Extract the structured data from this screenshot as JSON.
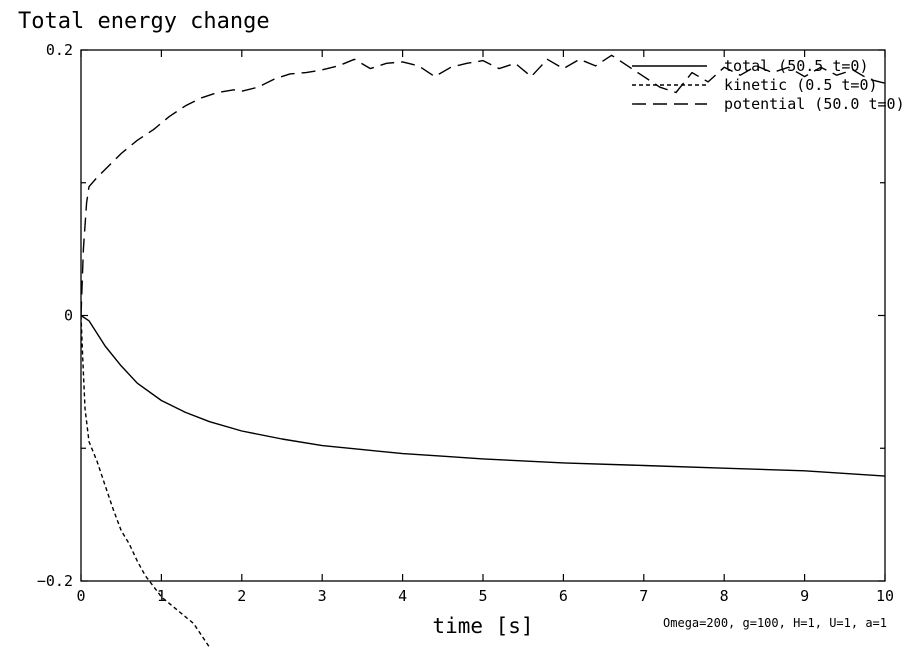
{
  "chart_data": {
    "type": "line",
    "title": "Total energy change",
    "xlabel": "time [s]",
    "ylabel": "",
    "xlim": [
      0,
      10
    ],
    "ylim": [
      -0.2,
      0.2
    ],
    "x_ticks": [
      0,
      1,
      2,
      3,
      4,
      5,
      6,
      7,
      8,
      9,
      10
    ],
    "x_tick_labels": [
      "0",
      "1",
      "2",
      "3",
      "4",
      "5",
      "6",
      "7",
      "8",
      "9",
      "10"
    ],
    "y_ticks": [
      -0.2,
      0,
      0.2
    ],
    "y_tick_labels": [
      "−0.2",
      "0",
      "0.2"
    ],
    "annotation": "Omega=200, g=100, H=1, U=1, a=1",
    "legend_position": "top-right",
    "series": [
      {
        "name": "total",
        "legend_label": "total (50.5 t=0)",
        "style": "solid",
        "x": [
          0,
          0.1,
          0.3,
          0.5,
          0.7,
          1.0,
          1.3,
          1.6,
          2.0,
          2.5,
          3.0,
          3.5,
          4.0,
          4.5,
          5.0,
          6.0,
          7.0,
          8.0,
          9.0,
          10.0
        ],
        "y": [
          0,
          -0.004,
          -0.023,
          -0.038,
          -0.051,
          -0.064,
          -0.073,
          -0.08,
          -0.087,
          -0.093,
          -0.098,
          -0.101,
          -0.104,
          -0.106,
          -0.108,
          -0.111,
          -0.113,
          -0.115,
          -0.117,
          -0.121
        ]
      },
      {
        "name": "kinetic",
        "legend_label": "kinetic (0.5 t=0)",
        "style": "dashed",
        "x": [
          0,
          0.02,
          0.05,
          0.1,
          0.2,
          0.3,
          0.4,
          0.5,
          0.6,
          0.7,
          0.8,
          0.9,
          1.0,
          1.2,
          1.4,
          1.6
        ],
        "y": [
          0,
          -0.03,
          -0.07,
          -0.095,
          -0.11,
          -0.128,
          -0.146,
          -0.162,
          -0.172,
          -0.185,
          -0.196,
          -0.204,
          -0.212,
          -0.222,
          -0.232,
          -0.25
        ]
      },
      {
        "name": "potential",
        "legend_label": "potential (50.0 t=0)",
        "style": "long-dash",
        "x": [
          0,
          0.03,
          0.07,
          0.1,
          0.2,
          0.3,
          0.5,
          0.7,
          0.9,
          1.1,
          1.3,
          1.5,
          1.7,
          1.9,
          2.0,
          2.2,
          2.4,
          2.6,
          2.8,
          3.0,
          3.2,
          3.4,
          3.6,
          3.8,
          4.0,
          4.2,
          4.4,
          4.6,
          4.8,
          5.0,
          5.2,
          5.4,
          5.6,
          5.8,
          6.0,
          6.2,
          6.4,
          6.6,
          6.8,
          7.0,
          7.2,
          7.4,
          7.6,
          7.8,
          8.0,
          8.2,
          8.4,
          8.6,
          8.8,
          9.0,
          9.2,
          9.4,
          9.6,
          9.8,
          10.0
        ],
        "y": [
          0,
          0.05,
          0.085,
          0.097,
          0.104,
          0.11,
          0.122,
          0.132,
          0.14,
          0.15,
          0.158,
          0.164,
          0.168,
          0.17,
          0.169,
          0.172,
          0.178,
          0.182,
          0.183,
          0.185,
          0.188,
          0.193,
          0.186,
          0.19,
          0.191,
          0.188,
          0.18,
          0.187,
          0.19,
          0.192,
          0.186,
          0.19,
          0.18,
          0.193,
          0.186,
          0.193,
          0.188,
          0.196,
          0.188,
          0.18,
          0.172,
          0.168,
          0.183,
          0.176,
          0.187,
          0.181,
          0.188,
          0.183,
          0.187,
          0.18,
          0.187,
          0.181,
          0.185,
          0.178,
          0.175
        ]
      }
    ]
  }
}
